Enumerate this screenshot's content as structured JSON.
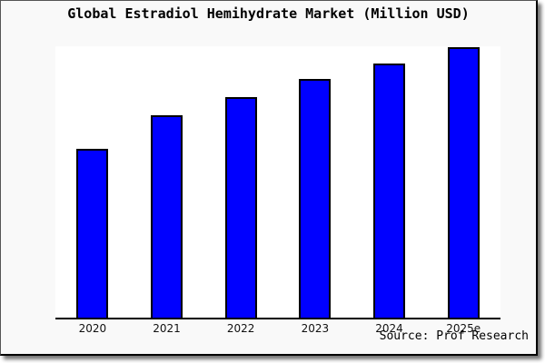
{
  "chart_data": {
    "type": "bar",
    "title": "Global Estradiol Hemihydrate Market (Million USD)",
    "categories": [
      "2020",
      "2021",
      "2022",
      "2023",
      "2024",
      "2025e"
    ],
    "values": [
      62.4,
      74.8,
      81.7,
      88.4,
      94.1,
      100.0
    ],
    "values_note": "relative bar heights as % of tallest bar; chart shows no y-axis tick labels",
    "xlabel": "",
    "ylabel": "",
    "ylim": [
      0,
      100.5
    ],
    "y_axis_visible": false,
    "grid": false,
    "legend": false,
    "bar_color": "#0000ff",
    "bar_border_color": "#000000",
    "plot_bg": "#ffffff",
    "fig_bg": "#f9f9f9"
  },
  "footer": {
    "source": "Source: Prof Research"
  }
}
